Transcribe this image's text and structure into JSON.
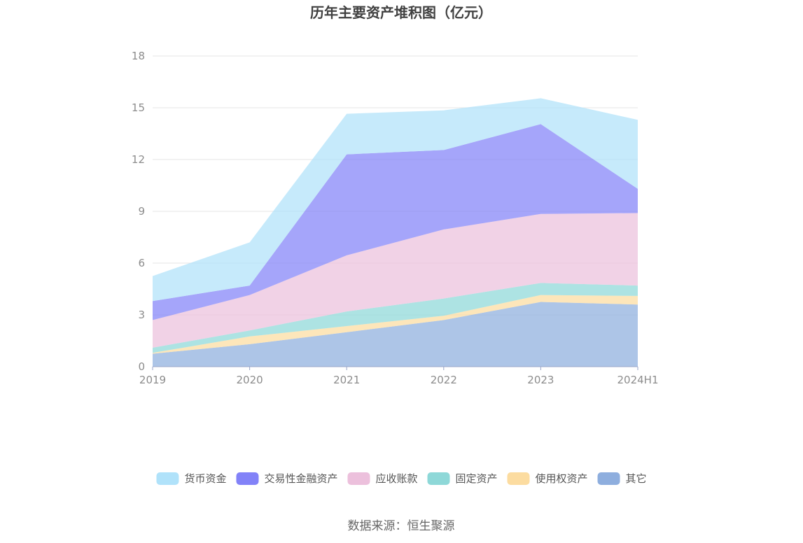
{
  "chart_data": {
    "type": "area",
    "stacked": true,
    "title": "历年主要资产堆积图（亿元）",
    "x": [
      "2019",
      "2020",
      "2021",
      "2022",
      "2023",
      "2024H1"
    ],
    "ylim": [
      0,
      18
    ],
    "yticks": [
      "0",
      "3",
      "6",
      "9",
      "12",
      "15",
      "18"
    ],
    "grid": true,
    "legend_position": "bottom",
    "series": [
      {
        "name": "其它",
        "color": "#8eaede",
        "values": [
          0.75,
          1.3,
          2.0,
          2.7,
          3.75,
          3.6
        ]
      },
      {
        "name": "使用权资产",
        "color": "#fcdca0",
        "values": [
          0.05,
          0.45,
          0.35,
          0.25,
          0.4,
          0.5
        ]
      },
      {
        "name": "固定资产",
        "color": "#8ed8d8",
        "values": [
          0.3,
          0.35,
          0.85,
          1.0,
          0.7,
          0.6
        ]
      },
      {
        "name": "应收账款",
        "color": "#ecc0dc",
        "values": [
          1.6,
          2.05,
          3.25,
          4.0,
          4.0,
          4.2
        ]
      },
      {
        "name": "交易性金融资产",
        "color": "#8282f8",
        "values": [
          1.1,
          0.55,
          5.85,
          4.6,
          5.2,
          1.4
        ]
      },
      {
        "name": "货币资金",
        "color": "#b0e2fa",
        "values": [
          1.45,
          2.5,
          2.35,
          2.3,
          1.5,
          4.0
        ]
      }
    ],
    "source": "数据来源：恒生聚源"
  }
}
